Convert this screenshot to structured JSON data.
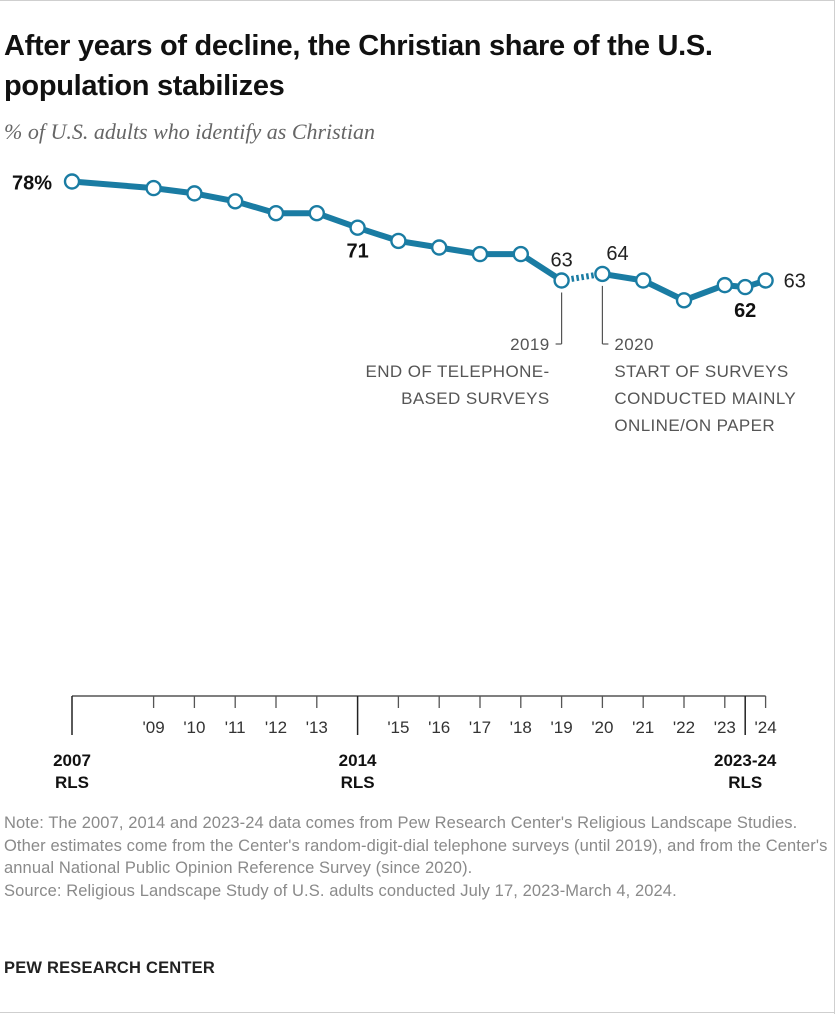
{
  "header": {
    "title": "After years of decline, the Christian share of the U.S. population stabilizes",
    "subtitle": "% of U.S. adults who identify as Christian"
  },
  "chart_data": {
    "type": "line",
    "title": "After years of decline, the Christian share of the U.S. population stabilizes",
    "subtitle": "% of U.S. adults who identify as Christian",
    "series": [
      {
        "points": [
          {
            "x": 2007,
            "y": 78
          },
          {
            "x": 2009,
            "y": 77
          },
          {
            "x": 2010,
            "y": 76.2
          },
          {
            "x": 2011,
            "y": 75
          },
          {
            "x": 2012,
            "y": 73.2
          },
          {
            "x": 2013,
            "y": 73.2
          },
          {
            "x": 2014,
            "y": 71
          },
          {
            "x": 2015,
            "y": 69
          },
          {
            "x": 2016,
            "y": 68
          },
          {
            "x": 2017,
            "y": 67
          },
          {
            "x": 2018,
            "y": 67
          },
          {
            "x": 2019,
            "y": 63
          },
          {
            "x": 2020,
            "y": 64
          },
          {
            "x": 2021,
            "y": 63
          },
          {
            "x": 2022,
            "y": 60
          },
          {
            "x": 2023,
            "y": 62.3
          },
          {
            "x": 2023.5,
            "y": 62
          },
          {
            "x": 2024,
            "y": 63
          }
        ]
      }
    ],
    "gap": {
      "from": 2019,
      "to": 2020,
      "style": "dotted"
    },
    "xlim": [
      2007,
      2024
    ],
    "ylim": [
      60,
      78
    ],
    "grid": false,
    "line_color": "#1a7ca3",
    "data_labels": [
      {
        "x": 2007,
        "text": "78%",
        "bold": true,
        "position": "left"
      },
      {
        "x": 2014,
        "text": "71",
        "bold": true,
        "position": "below"
      },
      {
        "x": 2019,
        "text": "63",
        "bold": false,
        "position": "above"
      },
      {
        "x": 2020,
        "text": "64",
        "bold": false,
        "position": "above-right"
      },
      {
        "x": 2023.5,
        "text": "62",
        "bold": true,
        "position": "below"
      },
      {
        "x": 2024,
        "text": "63",
        "bold": false,
        "position": "right"
      }
    ],
    "annotations": [
      {
        "x": 2019,
        "lines": [
          "2019",
          "END OF TELEPHONE-",
          "BASED SURVEYS"
        ],
        "align": "right"
      },
      {
        "x": 2020,
        "lines": [
          "2020",
          "START OF SURVEYS",
          "CONDUCTED MAINLY",
          "ONLINE/ON PAPER"
        ],
        "align": "left"
      }
    ],
    "x_ticks": [
      {
        "x": 2007,
        "label": "2007",
        "sub": "RLS",
        "major": true
      },
      {
        "x": 2009,
        "label": "'09"
      },
      {
        "x": 2010,
        "label": "'10"
      },
      {
        "x": 2011,
        "label": "'11"
      },
      {
        "x": 2012,
        "label": "'12"
      },
      {
        "x": 2013,
        "label": "'13"
      },
      {
        "x": 2014,
        "label": "2014",
        "sub": "RLS",
        "major": true
      },
      {
        "x": 2015,
        "label": "'15"
      },
      {
        "x": 2016,
        "label": "'16"
      },
      {
        "x": 2017,
        "label": "'17"
      },
      {
        "x": 2018,
        "label": "'18"
      },
      {
        "x": 2019,
        "label": "'19"
      },
      {
        "x": 2020,
        "label": "'20"
      },
      {
        "x": 2021,
        "label": "'21"
      },
      {
        "x": 2022,
        "label": "'22"
      },
      {
        "x": 2023,
        "label": "'23"
      },
      {
        "x": 2023.5,
        "label": "2023-24",
        "sub": "RLS",
        "major": true
      },
      {
        "x": 2024,
        "label": "'24"
      }
    ]
  },
  "notes": {
    "note": "Note: The 2007, 2014 and 2023-24 data comes from Pew Research Center's Religious Landscape Studies. Other estimates come from the Center's random-digit-dial telephone surveys (until 2019), and from the Center's annual National Public Opinion Reference Survey (since 2020).",
    "source": "Source: Religious Landscape Study of U.S. adults conducted July 17, 2023-March 4, 2024."
  },
  "footer": {
    "org": "PEW RESEARCH CENTER"
  }
}
